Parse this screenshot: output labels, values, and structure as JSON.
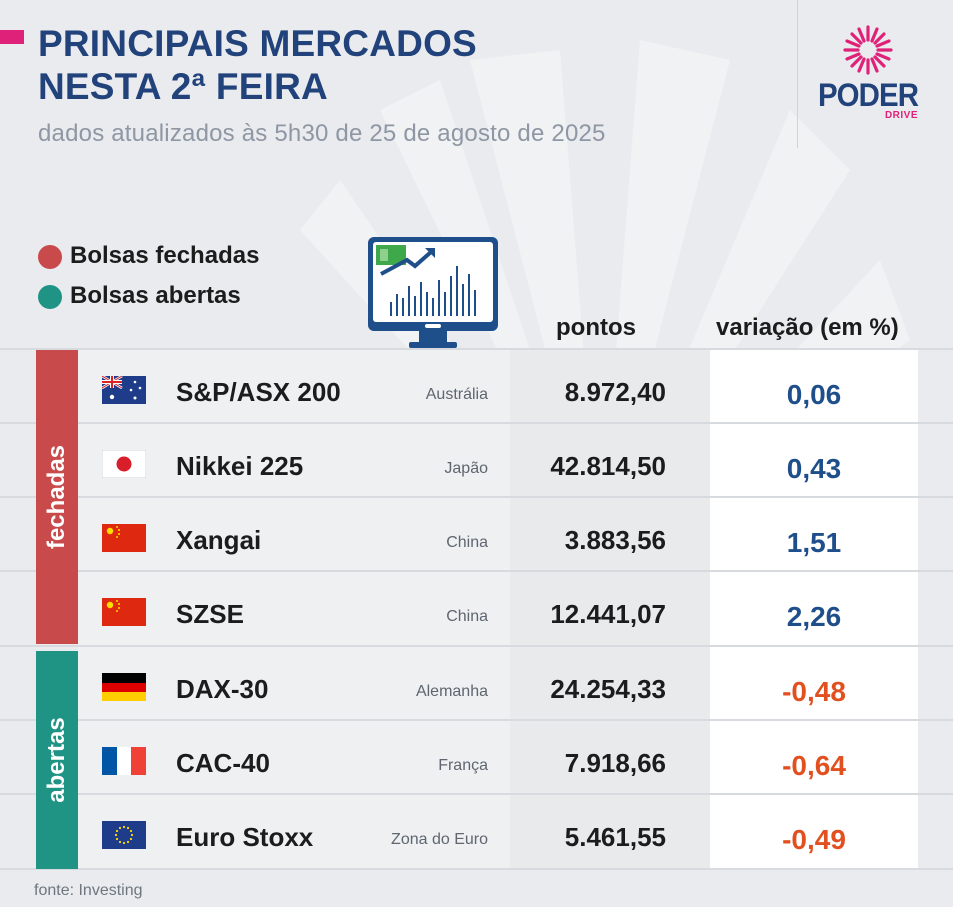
{
  "header": {
    "title_line1": "PRINCIPAIS MERCADOS",
    "title_line2": "NESTA 2ª FEIRA",
    "subtitle": "dados atualizados às 5h30 de 25 de agosto de 2025"
  },
  "logo": {
    "word": "PODER",
    "sub": "DRIVE"
  },
  "legend": [
    {
      "label": "Bolsas fechadas",
      "color": "#c94a4a"
    },
    {
      "label": "Bolsas abertas",
      "color": "#1f9485"
    }
  ],
  "columns": {
    "points": "pontos",
    "variation": "variação (em %)"
  },
  "groups": {
    "closed": {
      "label": "fechadas",
      "color": "#c94a4a"
    },
    "open": {
      "label": "abertas",
      "color": "#1f9485"
    }
  },
  "colors": {
    "positive": "#1f4f8a",
    "negative": "#e2501f",
    "title": "#21427a",
    "accent": "#e0217a"
  },
  "rows": [
    {
      "name": "S&P/ASX 200",
      "country": "Austrália",
      "points": "8.972,40",
      "variation": "0,06",
      "flag": "australia-flag-icon"
    },
    {
      "name": "Nikkei 225",
      "country": "Japão",
      "points": "42.814,50",
      "variation": "0,43",
      "flag": "japan-flag-icon"
    },
    {
      "name": "Xangai",
      "country": "China",
      "points": "3.883,56",
      "variation": "1,51",
      "flag": "china-flag-icon"
    },
    {
      "name": "SZSE",
      "country": "China",
      "points": "12.441,07",
      "variation": "2,26",
      "flag": "china-flag-icon"
    },
    {
      "name": "DAX-30",
      "country": "Alemanha",
      "points": "24.254,33",
      "variation": "-0,48",
      "flag": "germany-flag-icon"
    },
    {
      "name": "CAC-40",
      "country": "França",
      "points": "7.918,66",
      "variation": "-0,64",
      "flag": "france-flag-icon"
    },
    {
      "name": "Euro Stoxx",
      "country": "Zona do Euro",
      "points": "5.461,55",
      "variation": "-0,49",
      "flag": "eu-flag-icon"
    }
  ],
  "source": "fonte: Investing"
}
